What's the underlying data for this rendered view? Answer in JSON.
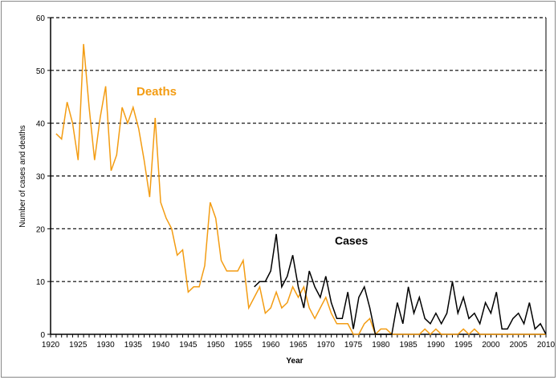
{
  "chart_data": {
    "type": "line",
    "title": "",
    "xlabel": "Year",
    "ylabel": "Number of cases and deaths",
    "xlim": [
      1920,
      2010
    ],
    "ylim": [
      0,
      60
    ],
    "xticks": [
      1920,
      1925,
      1930,
      1935,
      1940,
      1945,
      1950,
      1955,
      1960,
      1965,
      1970,
      1975,
      1980,
      1985,
      1990,
      1995,
      2000,
      2005,
      2010
    ],
    "yticks": [
      0,
      10,
      20,
      30,
      40,
      50,
      60
    ],
    "grid": "horizontal dashed",
    "series": [
      {
        "name": "Deaths",
        "color": "#f39c12",
        "x_start": 1921,
        "values": [
          38,
          37,
          44,
          40,
          33,
          55,
          43,
          33,
          41,
          47,
          31,
          34,
          43,
          40,
          43,
          39,
          33,
          26,
          41,
          25,
          22,
          20,
          15,
          16,
          8,
          9,
          9,
          13,
          25,
          22,
          14,
          12,
          12,
          12,
          14,
          5,
          7,
          9,
          4,
          5,
          8,
          5,
          6,
          9,
          7,
          9,
          5,
          3,
          5,
          7,
          4,
          2,
          2,
          2,
          0,
          0,
          2,
          3,
          0,
          1,
          1,
          0,
          0,
          0,
          0,
          0,
          0,
          1,
          0,
          1,
          0,
          0,
          0,
          0,
          1,
          0,
          1,
          0,
          0,
          0,
          0,
          0,
          0,
          0,
          0,
          0,
          0,
          0,
          0,
          0
        ]
      },
      {
        "name": "Cases",
        "color": "#000000",
        "x_start": 1957,
        "values": [
          9,
          10,
          10,
          12,
          19,
          9,
          11,
          15,
          9,
          5,
          12,
          9,
          7,
          11,
          6,
          3,
          3,
          8,
          1,
          7,
          9,
          5,
          0,
          0,
          0,
          0,
          6,
          2,
          9,
          4,
          7,
          3,
          2,
          4,
          2,
          4,
          10,
          4,
          7,
          3,
          4,
          2,
          6,
          4,
          8,
          1,
          1,
          3,
          4,
          2,
          6,
          1,
          2,
          0
        ]
      }
    ]
  }
}
